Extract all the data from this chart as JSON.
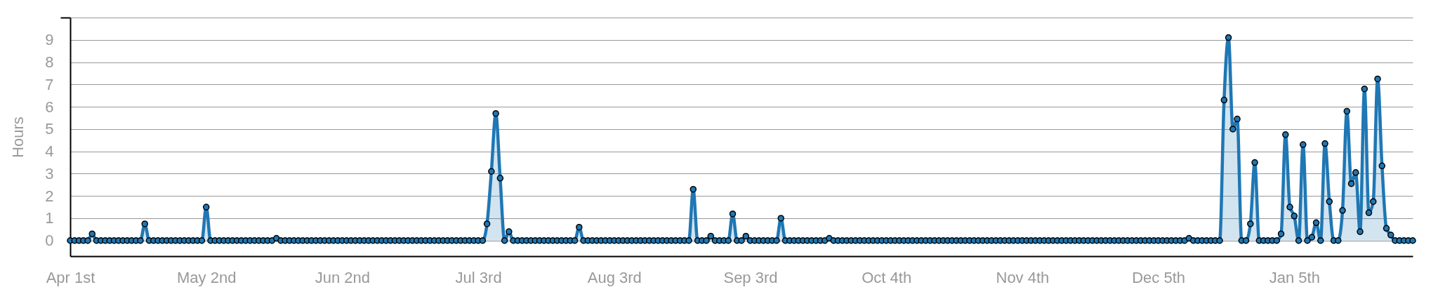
{
  "chart_data": {
    "type": "area",
    "ylabel": "Hours",
    "grid": "y",
    "marker": "circle",
    "line_style": "solid",
    "categories": [
      "Apr 1st",
      null,
      null,
      null,
      null,
      null,
      null,
      null,
      null,
      null,
      null,
      null,
      null,
      null,
      null,
      null,
      null,
      null,
      null,
      null,
      null,
      null,
      null,
      null,
      null,
      null,
      null,
      null,
      null,
      null,
      null,
      "May 2nd",
      null,
      null,
      null,
      null,
      null,
      null,
      null,
      null,
      null,
      null,
      null,
      null,
      null,
      null,
      null,
      null,
      null,
      null,
      null,
      null,
      null,
      null,
      null,
      null,
      null,
      null,
      null,
      null,
      null,
      null,
      "Jun 2nd",
      null,
      null,
      null,
      null,
      null,
      null,
      null,
      null,
      null,
      null,
      null,
      null,
      null,
      null,
      null,
      null,
      null,
      null,
      null,
      null,
      null,
      null,
      null,
      null,
      null,
      null,
      null,
      null,
      null,
      null,
      "Jul 3rd",
      null,
      null,
      null,
      null,
      null,
      null,
      null,
      null,
      null,
      null,
      null,
      null,
      null,
      null,
      null,
      null,
      null,
      null,
      null,
      null,
      null,
      null,
      null,
      null,
      null,
      null,
      null,
      null,
      null,
      null,
      "Aug 3rd",
      null,
      null,
      null,
      null,
      null,
      null,
      null,
      null,
      null,
      null,
      null,
      null,
      null,
      null,
      null,
      null,
      null,
      null,
      null,
      null,
      null,
      null,
      null,
      null,
      null,
      null,
      null,
      null,
      null,
      null,
      "Sep 3rd",
      null,
      null,
      null,
      null,
      null,
      null,
      null,
      null,
      null,
      null,
      null,
      null,
      null,
      null,
      null,
      null,
      null,
      null,
      null,
      null,
      null,
      null,
      null,
      null,
      null,
      null,
      null,
      null,
      null,
      null,
      "Oct 4th",
      null,
      null,
      null,
      null,
      null,
      null,
      null,
      null,
      null,
      null,
      null,
      null,
      null,
      null,
      null,
      null,
      null,
      null,
      null,
      null,
      null,
      null,
      null,
      null,
      null,
      null,
      null,
      null,
      null,
      null,
      "Nov 4th",
      null,
      null,
      null,
      null,
      null,
      null,
      null,
      null,
      null,
      null,
      null,
      null,
      null,
      null,
      null,
      null,
      null,
      null,
      null,
      null,
      null,
      null,
      null,
      null,
      null,
      null,
      null,
      null,
      null,
      null,
      "Dec 5th",
      null,
      null,
      null,
      null,
      null,
      null,
      null,
      null,
      null,
      null,
      null,
      null,
      null,
      null,
      null,
      null,
      null,
      null,
      null,
      null,
      null,
      null,
      null,
      null,
      null,
      null,
      null,
      null,
      null,
      null,
      "Jan 5th",
      null,
      null,
      null,
      null,
      null,
      null,
      null,
      null,
      null,
      null,
      null,
      null,
      null,
      null,
      null,
      null,
      null,
      null,
      null,
      null,
      null,
      null,
      null,
      null,
      null,
      null,
      null
    ],
    "ylim": [
      -0.7,
      10
    ],
    "yticks": [
      0,
      1,
      2,
      3,
      4,
      5,
      6,
      7,
      8,
      9,
      {
        "value": 10,
        "label": null
      }
    ],
    "series": [
      {
        "color": "#1f77b4",
        "values": [
          0,
          0,
          0,
          0,
          0,
          0.3,
          0,
          0,
          0,
          0,
          0,
          0,
          0,
          0,
          0,
          0,
          0,
          0.75,
          0,
          0,
          0,
          0,
          0,
          0,
          0,
          0,
          0,
          0,
          0,
          0,
          0,
          1.5,
          0,
          0,
          0,
          0,
          0,
          0,
          0,
          0,
          0,
          0,
          0,
          0,
          0,
          0,
          0,
          0.1,
          0,
          0,
          0,
          0,
          0,
          0,
          0,
          0,
          0,
          0,
          0,
          0,
          0,
          0,
          0,
          0,
          0,
          0,
          0,
          0,
          0,
          0,
          0,
          0,
          0,
          0,
          0,
          0,
          0,
          0,
          0,
          0,
          0,
          0,
          0,
          0,
          0,
          0,
          0,
          0,
          0,
          0,
          0,
          0,
          0,
          0,
          0,
          0.75,
          3.1,
          5.7,
          2.8,
          0,
          0.4,
          0,
          0,
          0,
          0,
          0,
          0,
          0,
          0,
          0,
          0,
          0,
          0,
          0,
          0,
          0,
          0.6,
          0,
          0,
          0,
          0,
          0,
          0,
          0,
          0,
          0,
          0,
          0,
          0,
          0,
          0,
          0,
          0,
          0,
          0,
          0,
          0,
          0,
          0,
          0,
          0,
          0,
          2.3,
          0,
          0,
          0,
          0.2,
          0,
          0,
          0,
          0,
          1.2,
          0,
          0,
          0.2,
          0,
          0,
          0,
          0,
          0,
          0,
          0,
          1,
          0,
          0,
          0,
          0,
          0,
          0,
          0,
          0,
          0,
          0,
          0.1,
          0,
          0,
          0,
          0,
          0,
          0,
          0,
          0,
          0,
          0,
          0,
          0,
          0,
          0,
          0,
          0,
          0,
          0,
          0,
          0,
          0,
          0,
          0,
          0,
          0,
          0,
          0,
          0,
          0,
          0,
          0,
          0,
          0,
          0,
          0,
          0,
          0,
          0,
          0,
          0,
          0,
          0,
          0,
          0,
          0,
          0,
          0,
          0,
          0,
          0,
          0,
          0,
          0,
          0,
          0,
          0,
          0,
          0,
          0,
          0,
          0,
          0,
          0,
          0,
          0,
          0,
          0,
          0,
          0,
          0,
          0,
          0,
          0,
          0,
          0,
          0,
          0,
          0,
          0,
          0,
          0,
          0.1,
          0,
          0,
          0,
          0,
          0,
          0,
          0,
          6.3,
          9.1,
          5,
          5.45,
          0,
          0,
          0.75,
          3.5,
          0,
          0,
          0,
          0,
          0,
          0.3,
          4.75,
          1.5,
          1.1,
          0,
          4.3,
          0,
          0.15,
          0.8,
          0,
          4.35,
          1.75,
          0,
          0,
          1.35,
          5.8,
          2.55,
          3.05,
          0.4,
          6.8,
          1.25,
          1.75,
          7.25,
          3.35,
          0.55,
          0.25,
          0,
          0,
          0,
          0,
          0
        ]
      }
    ]
  }
}
